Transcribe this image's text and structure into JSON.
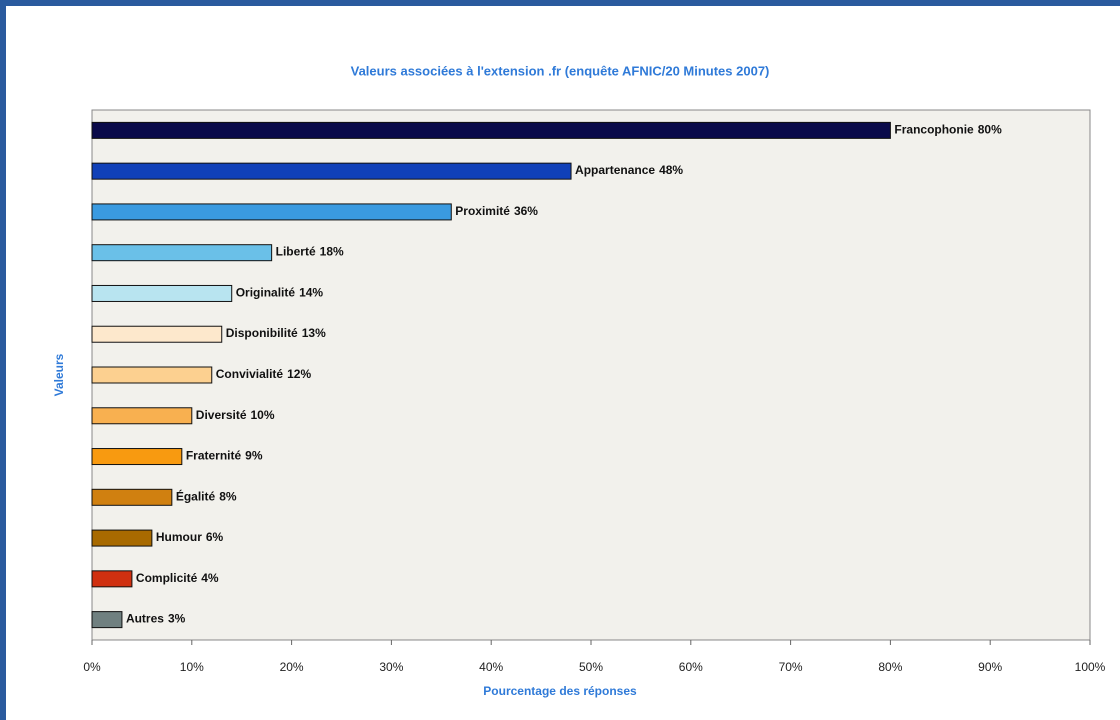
{
  "chart_data": {
    "type": "bar",
    "orientation": "horizontal",
    "title": "Valeurs associées à l'extension .fr (enquête AFNIC/20 Minutes 2007)",
    "xlabel": "Pourcentage des réponses",
    "ylabel": "Valeurs",
    "categories": [
      "Francophonie",
      "Appartenance",
      "Proximité",
      "Liberté",
      "Originalité",
      "Disponibilité",
      "Convivialité",
      "Diversité",
      "Fraternité",
      "Égalité",
      "Humour",
      "Complicité",
      "Autres"
    ],
    "values": [
      80,
      48,
      36,
      18,
      14,
      13,
      12,
      10,
      9,
      8,
      6,
      4,
      3
    ],
    "value_labels": [
      "80%",
      "48%",
      "36%",
      "18%",
      "14%",
      "13%",
      "12%",
      "10%",
      "9%",
      "8%",
      "6%",
      "4%",
      "3%"
    ],
    "colors": [
      "#0a0a4a",
      "#1040b8",
      "#3a9ae0",
      "#6ac0e8",
      "#b8e4f0",
      "#fde8cc",
      "#fcd090",
      "#f8b050",
      "#f89a10",
      "#d08010",
      "#a86a00",
      "#d03010",
      "#708080"
    ],
    "xlim": [
      0,
      100
    ],
    "xticks": [
      {
        "value": 0,
        "label": "0%"
      },
      {
        "value": 10,
        "label": "10%"
      },
      {
        "value": 20,
        "label": "20%"
      },
      {
        "value": 30,
        "label": "30%"
      },
      {
        "value": 40,
        "label": "40%"
      },
      {
        "value": 50,
        "label": "50%"
      },
      {
        "value": 60,
        "label": "60%"
      },
      {
        "value": 70,
        "label": "70%"
      },
      {
        "value": 80,
        "label": "80%"
      },
      {
        "value": 90,
        "label": "90%"
      },
      {
        "value": 100,
        "label": "100%"
      }
    ],
    "grid": false
  }
}
